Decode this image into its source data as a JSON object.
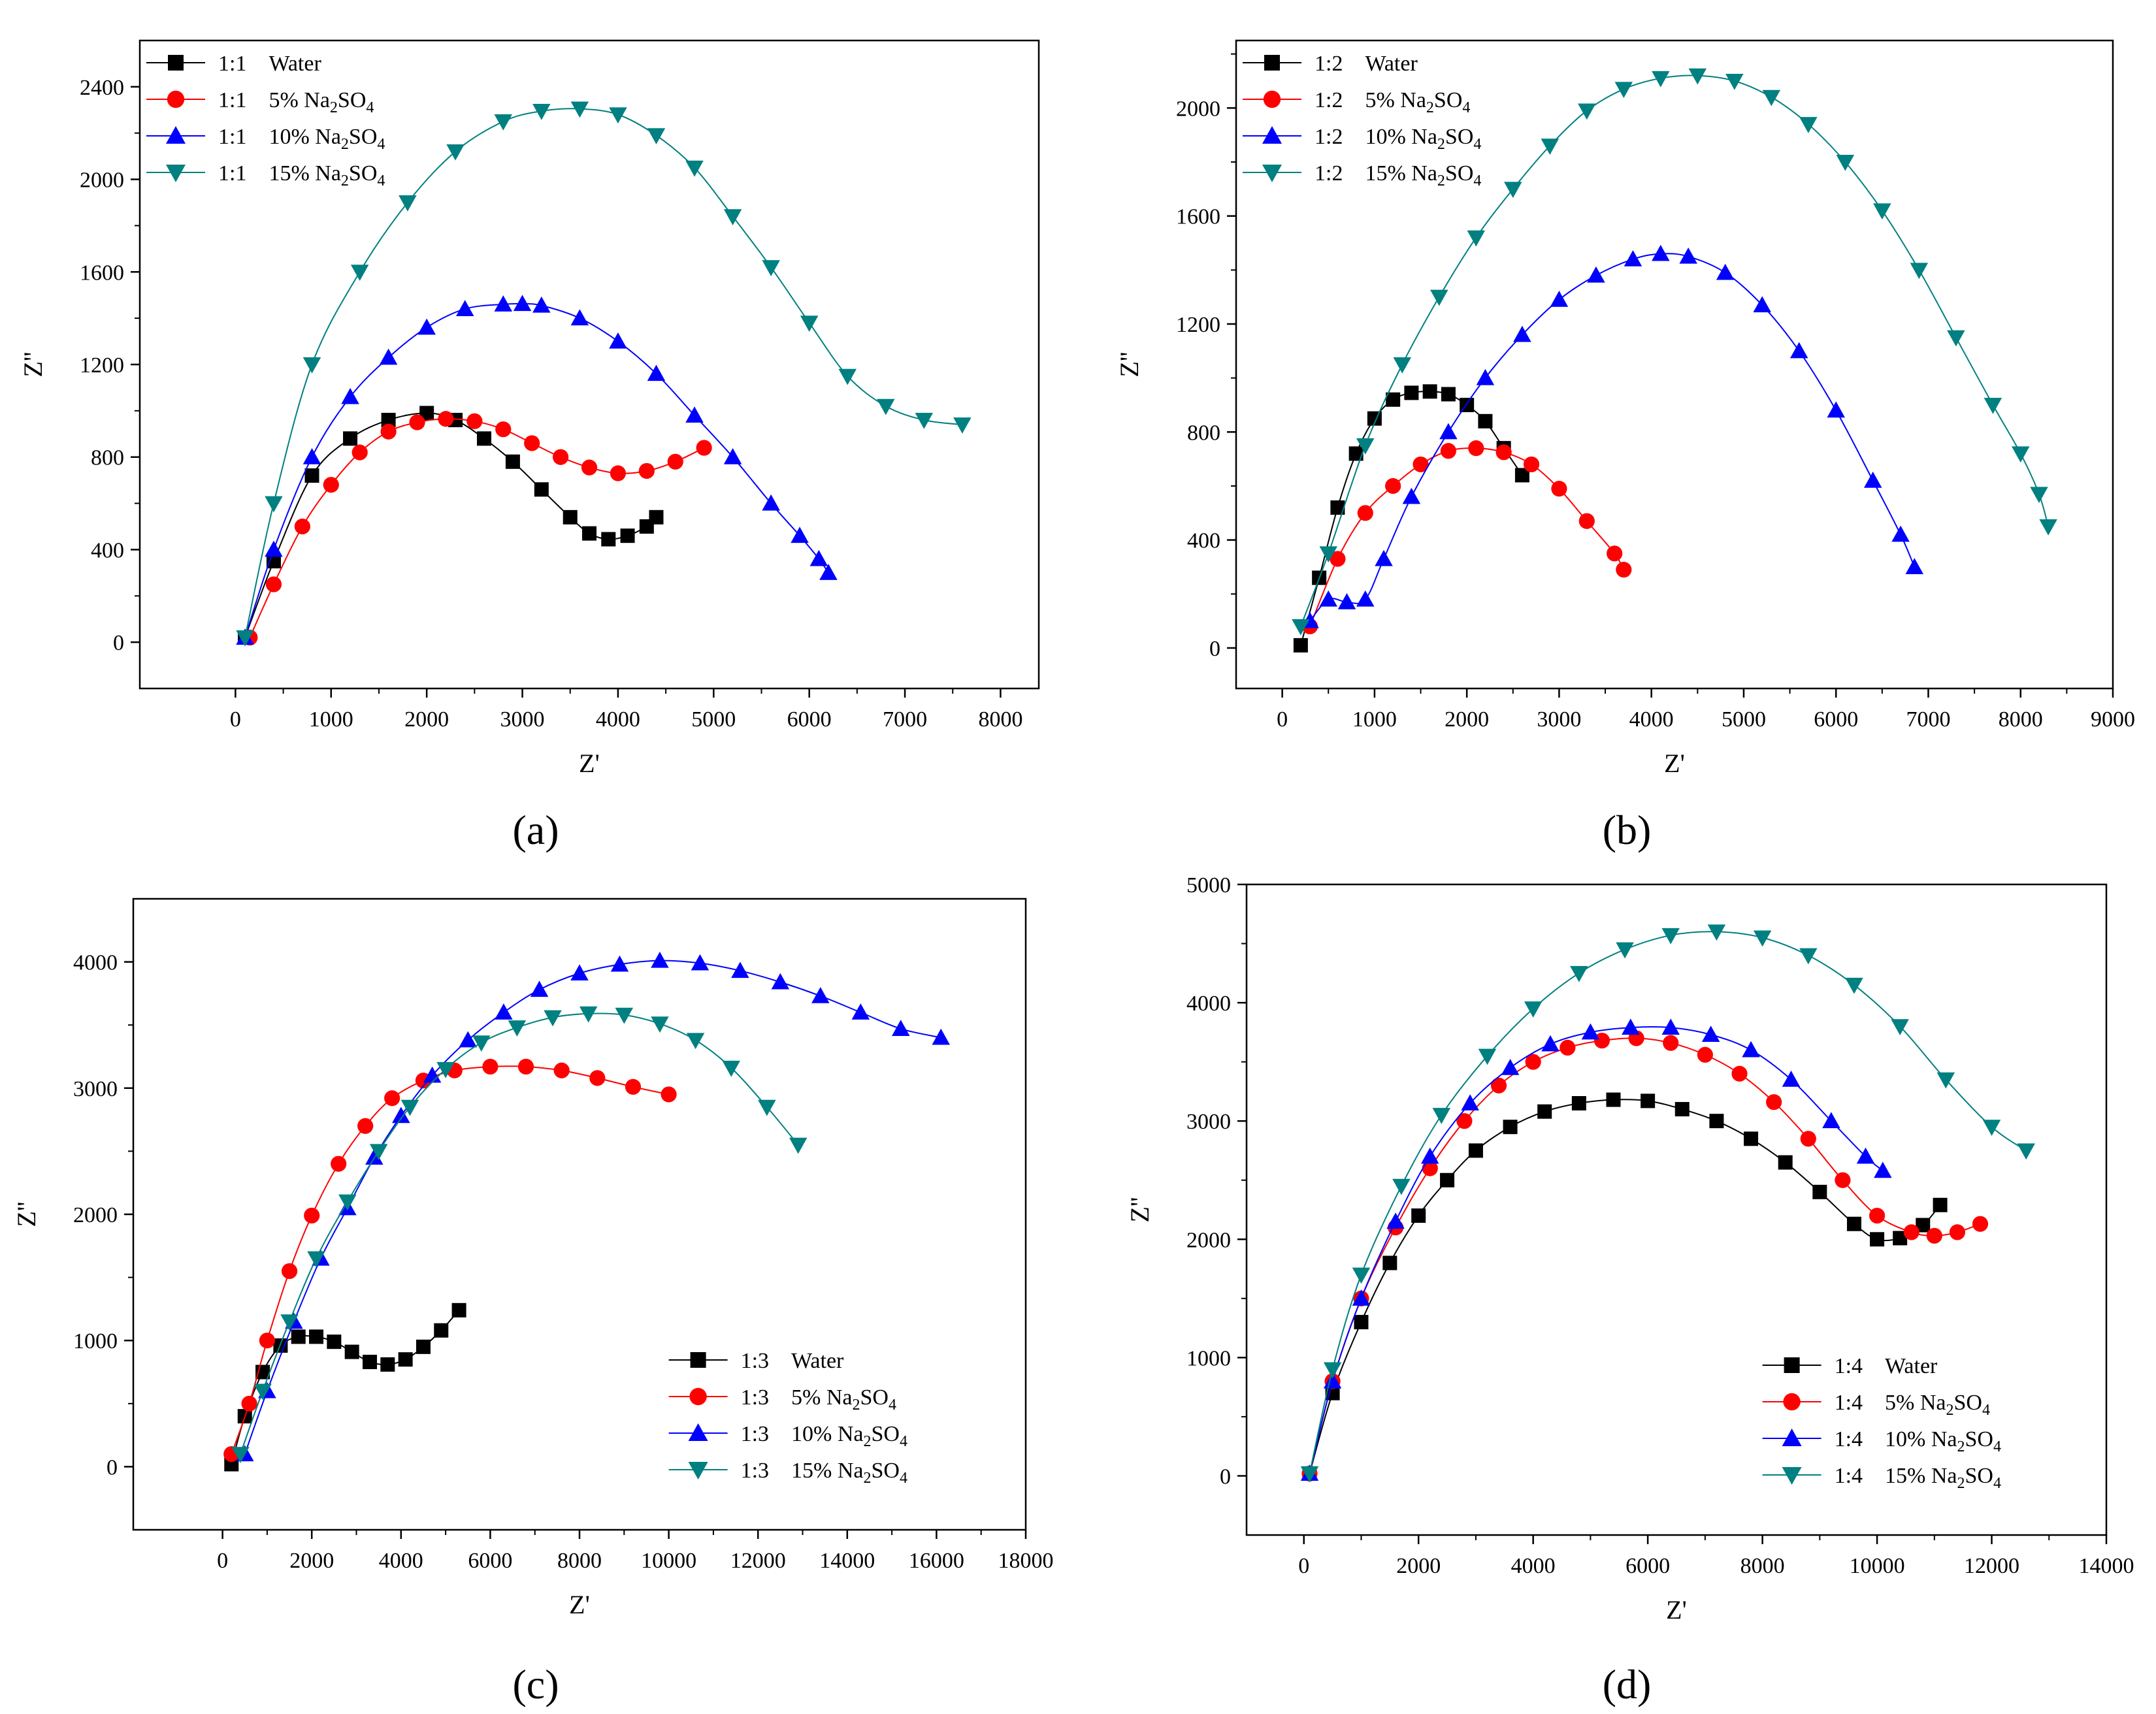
{
  "figure": {
    "type": "multi-panel Nyquist plots"
  },
  "chart_data": [
    {
      "panel": "a",
      "caption": "(a)",
      "type": "line",
      "xlabel": "Z'",
      "ylabel": "Z''",
      "xlim": [
        -1000,
        8400
      ],
      "ylim": [
        -200,
        2600
      ],
      "xticks": [
        0,
        1000,
        2000,
        3000,
        4000,
        5000,
        6000,
        7000,
        8000
      ],
      "yticks": [
        0,
        400,
        800,
        1200,
        1600,
        2000,
        2400
      ],
      "legend_position": "top-left",
      "series": [
        {
          "name": "1:1    Water",
          "prefix": "1:1",
          "label": "Water",
          "sub": "",
          "after": "",
          "color": "#000000",
          "marker": "square",
          "x": [
            100,
            400,
            800,
            1200,
            1600,
            2000,
            2300,
            2600,
            2900,
            3200,
            3500,
            3700,
            3900,
            4100,
            4300,
            4400
          ],
          "y": [
            20,
            350,
            720,
            880,
            960,
            990,
            960,
            880,
            780,
            660,
            540,
            470,
            445,
            460,
            500,
            540
          ]
        },
        {
          "name": "1:1  5% Na2SO4",
          "prefix": "1:1",
          "label": "5% Na",
          "sub": "2",
          "after": "SO",
          "sub2": "4",
          "color": "#ff0000",
          "marker": "circle",
          "x": [
            150,
            400,
            700,
            1000,
            1300,
            1600,
            1900,
            2200,
            2500,
            2800,
            3100,
            3400,
            3700,
            4000,
            4300,
            4600,
            4900
          ],
          "y": [
            20,
            250,
            500,
            680,
            820,
            910,
            950,
            965,
            955,
            920,
            860,
            800,
            755,
            730,
            740,
            780,
            840
          ]
        },
        {
          "name": "1:1  10% Na2SO4",
          "prefix": "1:1",
          "label": "10% Na",
          "sub": "2",
          "after": "SO",
          "sub2": "4",
          "color": "#0000ff",
          "marker": "triangle-up",
          "x": [
            100,
            400,
            800,
            1200,
            1600,
            2000,
            2400,
            2800,
            3000,
            3200,
            3600,
            4000,
            4400,
            4800,
            5200,
            5600,
            5900,
            6100,
            6200
          ],
          "y": [
            20,
            400,
            800,
            1060,
            1230,
            1360,
            1440,
            1460,
            1462,
            1455,
            1400,
            1300,
            1160,
            980,
            800,
            600,
            460,
            360,
            300
          ]
        },
        {
          "name": "1:1  15% Na2SO4",
          "prefix": "1:1",
          "label": "15% Na",
          "sub": "2",
          "after": "SO",
          "sub2": "4",
          "color": "#008080",
          "marker": "triangle-down",
          "x": [
            100,
            400,
            800,
            1300,
            1800,
            2300,
            2800,
            3200,
            3600,
            4000,
            4400,
            4800,
            5200,
            5600,
            6000,
            6400,
            6800,
            7200,
            7600
          ],
          "y": [
            20,
            600,
            1200,
            1600,
            1900,
            2120,
            2250,
            2295,
            2305,
            2280,
            2190,
            2050,
            1840,
            1620,
            1380,
            1150,
            1020,
            960,
            940
          ]
        }
      ]
    },
    {
      "panel": "b",
      "caption": "(b)",
      "type": "line",
      "xlabel": "Z'",
      "ylabel": "Z''",
      "xlim": [
        -500,
        9000
      ],
      "ylim": [
        -150,
        2250
      ],
      "xticks": [
        0,
        1000,
        2000,
        3000,
        4000,
        5000,
        6000,
        7000,
        8000,
        9000
      ],
      "yticks": [
        0,
        400,
        800,
        1200,
        1600,
        2000
      ],
      "legend_position": "top-left",
      "series": [
        {
          "name": "1:2    Water",
          "prefix": "1:2",
          "label": "Water",
          "sub": "",
          "after": "",
          "color": "#000000",
          "marker": "square",
          "x": [
            200,
            400,
            600,
            800,
            1000,
            1200,
            1400,
            1600,
            1800,
            2000,
            2200,
            2400,
            2600
          ],
          "y": [
            10,
            260,
            520,
            720,
            850,
            920,
            945,
            950,
            940,
            900,
            840,
            740,
            640
          ]
        },
        {
          "name": "1:2  5% Na2SO4",
          "prefix": "1:2",
          "label": "5% Na",
          "sub": "2",
          "after": "SO",
          "sub2": "4",
          "color": "#ff0000",
          "marker": "circle",
          "x": [
            300,
            600,
            900,
            1200,
            1500,
            1800,
            2100,
            2400,
            2700,
            3000,
            3300,
            3600,
            3700
          ],
          "y": [
            80,
            330,
            500,
            600,
            680,
            730,
            740,
            725,
            680,
            590,
            470,
            350,
            290
          ]
        },
        {
          "name": "1:2  10% Na2SO4",
          "prefix": "1:2",
          "label": "10% Na",
          "sub": "2",
          "after": "SO",
          "sub2": "4",
          "color": "#0000ff",
          "marker": "triangle-up",
          "x": [
            300,
            500,
            700,
            900,
            1100,
            1400,
            1800,
            2200,
            2600,
            3000,
            3400,
            3800,
            4100,
            4400,
            4800,
            5200,
            5600,
            6000,
            6400,
            6700,
            6850
          ],
          "y": [
            100,
            180,
            170,
            180,
            330,
            560,
            800,
            1000,
            1160,
            1290,
            1380,
            1440,
            1460,
            1450,
            1390,
            1270,
            1100,
            880,
            620,
            420,
            300
          ]
        },
        {
          "name": "1:2  15% Na2SO4",
          "prefix": "1:2",
          "label": "15% Na",
          "sub": "2",
          "after": "SO",
          "sub2": "4",
          "color": "#008080",
          "marker": "triangle-down",
          "x": [
            200,
            500,
            900,
            1300,
            1700,
            2100,
            2500,
            2900,
            3300,
            3700,
            4100,
            4500,
            4900,
            5300,
            5700,
            6100,
            6500,
            6900,
            7300,
            7700,
            8000,
            8200,
            8300
          ],
          "y": [
            80,
            350,
            750,
            1050,
            1300,
            1520,
            1700,
            1860,
            1990,
            2070,
            2110,
            2120,
            2100,
            2040,
            1940,
            1800,
            1620,
            1400,
            1150,
            900,
            720,
            570,
            450
          ]
        }
      ]
    },
    {
      "panel": "c",
      "caption": "(c)",
      "type": "line",
      "xlabel": "Z'",
      "ylabel": "Z''",
      "xlim": [
        -2000,
        18000
      ],
      "ylim": [
        -500,
        4500
      ],
      "xticks": [
        0,
        2000,
        4000,
        6000,
        8000,
        10000,
        12000,
        14000,
        16000,
        18000
      ],
      "yticks": [
        0,
        1000,
        2000,
        3000,
        4000
      ],
      "legend_position": "bottom-right",
      "series": [
        {
          "name": "1:3    Water",
          "prefix": "1:3",
          "label": "Water",
          "sub": "",
          "after": "",
          "color": "#000000",
          "marker": "square",
          "x": [
            200,
            500,
            900,
            1300,
            1700,
            2100,
            2500,
            2900,
            3300,
            3700,
            4100,
            4500,
            4900,
            5300
          ],
          "y": [
            20,
            400,
            750,
            960,
            1030,
            1030,
            990,
            910,
            830,
            810,
            850,
            950,
            1080,
            1240
          ]
        },
        {
          "name": "1:3  5% Na2SO4",
          "prefix": "1:3",
          "label": "5% Na",
          "sub": "2",
          "after": "SO",
          "sub2": "4",
          "color": "#ff0000",
          "marker": "circle",
          "x": [
            200,
            600,
            1000,
            1500,
            2000,
            2600,
            3200,
            3800,
            4500,
            5200,
            6000,
            6800,
            7600,
            8400,
            9200,
            10000
          ],
          "y": [
            100,
            500,
            1000,
            1550,
            1990,
            2400,
            2700,
            2920,
            3060,
            3140,
            3170,
            3170,
            3140,
            3080,
            3010,
            2950
          ]
        },
        {
          "name": "1:3  10% Na2SO4",
          "prefix": "1:3",
          "label": "10% Na",
          "sub": "2",
          "after": "SO",
          "sub2": "4",
          "color": "#0000ff",
          "marker": "triangle-up",
          "x": [
            500,
            1000,
            1600,
            2200,
            2800,
            3400,
            4000,
            4700,
            5500,
            6300,
            7100,
            8000,
            8900,
            9800,
            10700,
            11600,
            12500,
            13400,
            14300,
            15200,
            16100
          ],
          "y": [
            100,
            600,
            1150,
            1650,
            2050,
            2450,
            2780,
            3100,
            3380,
            3600,
            3780,
            3910,
            3980,
            4010,
            3990,
            3930,
            3840,
            3730,
            3600,
            3470,
            3400
          ]
        },
        {
          "name": "1:3  15% Na2SO4",
          "prefix": "1:3",
          "label": "15% Na",
          "sub": "2",
          "after": "SO",
          "sub2": "4",
          "color": "#008080",
          "marker": "triangle-down",
          "x": [
            400,
            900,
            1500,
            2100,
            2800,
            3500,
            4200,
            5000,
            5800,
            6600,
            7400,
            8200,
            9000,
            9800,
            10600,
            11400,
            12200,
            12900
          ],
          "y": [
            100,
            600,
            1150,
            1650,
            2100,
            2500,
            2850,
            3150,
            3360,
            3480,
            3560,
            3590,
            3580,
            3510,
            3380,
            3160,
            2850,
            2550
          ]
        }
      ]
    },
    {
      "panel": "d",
      "caption": "(d)",
      "type": "line",
      "xlabel": "Z'",
      "ylabel": "Z''",
      "xlim": [
        -1000,
        14000
      ],
      "ylim": [
        -500,
        5000
      ],
      "xticks": [
        0,
        2000,
        4000,
        6000,
        8000,
        10000,
        12000,
        14000
      ],
      "yticks": [
        0,
        1000,
        2000,
        3000,
        4000,
        5000
      ],
      "legend_position": "bottom-right",
      "series": [
        {
          "name": "1:4    Water",
          "prefix": "1:4",
          "label": "Water",
          "sub": "",
          "after": "",
          "color": "#000000",
          "marker": "square",
          "x": [
            100,
            500,
            1000,
            1500,
            2000,
            2500,
            3000,
            3600,
            4200,
            4800,
            5400,
            6000,
            6600,
            7200,
            7800,
            8400,
            9000,
            9600,
            10000,
            10400,
            10800,
            11100
          ],
          "y": [
            20,
            700,
            1300,
            1800,
            2200,
            2500,
            2750,
            2950,
            3080,
            3150,
            3180,
            3170,
            3100,
            3000,
            2850,
            2650,
            2400,
            2130,
            2000,
            2010,
            2120,
            2290
          ]
        },
        {
          "name": "1:4    5% Na2SO4",
          "prefix": "1:4",
          "label": "5% Na",
          "sub": "2",
          "after": "SO",
          "sub2": "4",
          "color": "#ff0000",
          "marker": "circle",
          "x": [
            100,
            500,
            1000,
            1600,
            2200,
            2800,
            3400,
            4000,
            4600,
            5200,
            5800,
            6400,
            7000,
            7600,
            8200,
            8800,
            9400,
            10000,
            10600,
            11000,
            11400,
            11800
          ],
          "y": [
            20,
            800,
            1500,
            2100,
            2600,
            3000,
            3300,
            3500,
            3620,
            3680,
            3700,
            3660,
            3560,
            3400,
            3160,
            2850,
            2500,
            2200,
            2060,
            2030,
            2060,
            2130
          ]
        },
        {
          "name": "1:4    10% Na2SO4",
          "prefix": "1:4",
          "label": "10% Na",
          "sub": "2",
          "after": "SO",
          "sub2": "4",
          "color": "#0000ff",
          "marker": "triangle-up",
          "x": [
            100,
            500,
            1000,
            1600,
            2200,
            2900,
            3600,
            4300,
            5000,
            5700,
            6400,
            7100,
            7800,
            8500,
            9200,
            9800,
            10100
          ],
          "y": [
            20,
            800,
            1500,
            2150,
            2700,
            3150,
            3450,
            3650,
            3750,
            3790,
            3790,
            3730,
            3600,
            3350,
            3000,
            2700,
            2580
          ]
        },
        {
          "name": "1:4    15% Na2SO4",
          "prefix": "1:4",
          "label": "15% Na",
          "sub": "2",
          "after": "SO",
          "sub2": "4",
          "color": "#008080",
          "marker": "triangle-down",
          "x": [
            100,
            500,
            1000,
            1700,
            2400,
            3200,
            4000,
            4800,
            5600,
            6400,
            7200,
            8000,
            8800,
            9600,
            10400,
            11200,
            12000,
            12600
          ],
          "y": [
            20,
            900,
            1700,
            2450,
            3050,
            3550,
            3950,
            4250,
            4450,
            4570,
            4600,
            4550,
            4400,
            4150,
            3800,
            3350,
            2950,
            2750
          ]
        }
      ]
    }
  ]
}
